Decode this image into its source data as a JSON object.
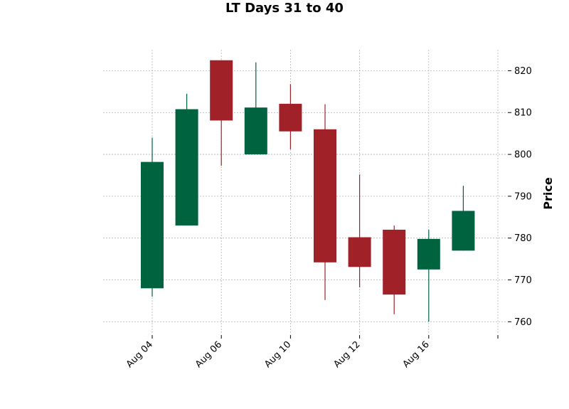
{
  "chart_data": {
    "type": "candlestick",
    "title": "LT Days 31 to 40",
    "xlabel": "",
    "ylabel": "Price",
    "ylim": [
      757,
      825
    ],
    "yticks": [
      760,
      770,
      780,
      790,
      800,
      810,
      820
    ],
    "x_tick_labels": [
      "Aug 04",
      "Aug 06",
      "Aug 10",
      "Aug 12",
      "Aug 16",
      ""
    ],
    "grid": true,
    "colors": {
      "up": "#006340",
      "down": "#a02128"
    },
    "candles": [
      {
        "open": 768.0,
        "high": 804.0,
        "low": 766.0,
        "close": 798.2
      },
      {
        "open": 783.0,
        "high": 814.5,
        "low": 783.0,
        "close": 810.8
      },
      {
        "open": 822.5,
        "high": 822.5,
        "low": 797.3,
        "close": 808.1
      },
      {
        "open": 800.0,
        "high": 822.0,
        "low": 800.0,
        "close": 811.2
      },
      {
        "open": 812.1,
        "high": 816.8,
        "low": 801.2,
        "close": 805.5
      },
      {
        "open": 806.0,
        "high": 812.0,
        "low": 765.2,
        "close": 774.2
      },
      {
        "open": 780.2,
        "high": 795.2,
        "low": 768.2,
        "close": 773.1
      },
      {
        "open": 782.0,
        "high": 783.0,
        "low": 761.8,
        "close": 766.5
      },
      {
        "open": 772.5,
        "high": 782.0,
        "low": 760.0,
        "close": 779.8
      },
      {
        "open": 777.0,
        "high": 792.5,
        "low": 777.0,
        "close": 786.5
      }
    ]
  }
}
